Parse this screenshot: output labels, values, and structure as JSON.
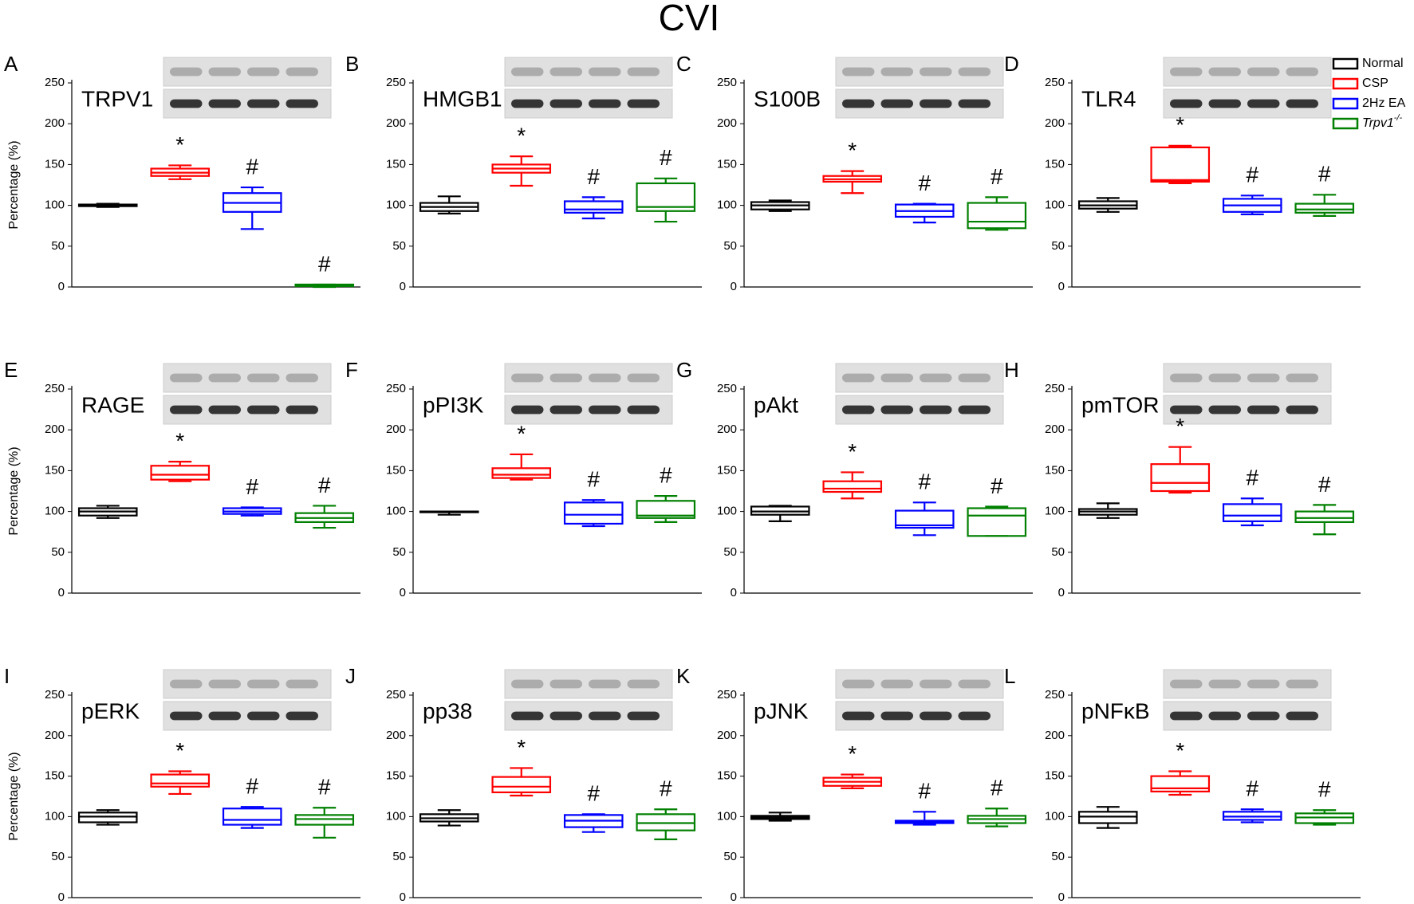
{
  "title": "CVI",
  "legend": [
    {
      "name": "Normal",
      "color": "#000000"
    },
    {
      "name": "CSP",
      "color": "#ff0000"
    },
    {
      "name": "2Hz EA",
      "color": "#0000ff"
    },
    {
      "name": "Trpv1",
      "sup": "-/-",
      "color": "#008000"
    }
  ],
  "chart_data": [
    {
      "type": "box",
      "label": "A",
      "title": "TRPV1",
      "ylabel": "Percentage (%)",
      "ylim": [
        0,
        250
      ],
      "yticks": [
        0,
        50,
        100,
        150,
        200,
        250
      ],
      "boxes": [
        [
          98,
          99,
          100,
          101,
          102
        ],
        [
          132,
          136,
          140,
          145,
          149
        ],
        [
          71,
          92,
          103,
          115,
          122
        ],
        [
          0,
          1,
          2,
          3,
          3
        ]
      ],
      "markers": [
        null,
        "*",
        "#",
        "#"
      ]
    },
    {
      "type": "box",
      "label": "B",
      "title": "HMGB1",
      "ylim": [
        0,
        250
      ],
      "yticks": [
        0,
        50,
        100,
        150,
        200,
        250
      ],
      "boxes": [
        [
          90,
          93,
          98,
          103,
          111
        ],
        [
          124,
          140,
          145,
          150,
          160
        ],
        [
          84,
          91,
          95,
          105,
          110
        ],
        [
          80,
          93,
          98,
          127,
          133
        ]
      ],
      "markers": [
        null,
        "*",
        "#",
        "#"
      ]
    },
    {
      "type": "box",
      "label": "C",
      "title": "S100B",
      "ylim": [
        0,
        250
      ],
      "yticks": [
        0,
        50,
        100,
        150,
        200,
        250
      ],
      "boxes": [
        [
          93,
          95,
          100,
          104,
          106
        ],
        [
          115,
          129,
          132,
          136,
          142
        ],
        [
          79,
          86,
          93,
          101,
          102
        ],
        [
          70,
          72,
          80,
          103,
          110
        ]
      ],
      "markers": [
        null,
        "*",
        "#",
        "#"
      ]
    },
    {
      "type": "box",
      "label": "D",
      "title": "TLR4",
      "ylim": [
        0,
        250
      ],
      "yticks": [
        0,
        50,
        100,
        150,
        200,
        250
      ],
      "boxes": [
        [
          92,
          96,
          100,
          105,
          109
        ],
        [
          127,
          129,
          131,
          171,
          173
        ],
        [
          89,
          92,
          100,
          108,
          112
        ],
        [
          87,
          91,
          95,
          102,
          113
        ]
      ],
      "markers": [
        null,
        "*",
        "#",
        "#"
      ]
    },
    {
      "type": "box",
      "label": "E",
      "title": "RAGE",
      "ylabel": "Percentage (%)",
      "ylim": [
        0,
        250
      ],
      "yticks": [
        0,
        50,
        100,
        150,
        200,
        250
      ],
      "boxes": [
        [
          92,
          95,
          100,
          104,
          107
        ],
        [
          137,
          139,
          145,
          156,
          161
        ],
        [
          95,
          97,
          100,
          104,
          105
        ],
        [
          80,
          87,
          92,
          98,
          107
        ]
      ],
      "markers": [
        null,
        "*",
        "#",
        "#"
      ]
    },
    {
      "type": "box",
      "label": "F",
      "title": "pPI3K",
      "ylim": [
        0,
        250
      ],
      "yticks": [
        0,
        50,
        100,
        150,
        200,
        250
      ],
      "boxes": [
        [
          96,
          100,
          100,
          100,
          100
        ],
        [
          139,
          141,
          145,
          153,
          170
        ],
        [
          82,
          85,
          96,
          111,
          114
        ],
        [
          87,
          92,
          95,
          113,
          119
        ]
      ],
      "markers": [
        null,
        "*",
        "#",
        "#"
      ]
    },
    {
      "type": "box",
      "label": "G",
      "title": "pAkt",
      "ylim": [
        0,
        250
      ],
      "yticks": [
        0,
        50,
        100,
        150,
        200,
        250
      ],
      "boxes": [
        [
          88,
          96,
          100,
          106,
          107
        ],
        [
          116,
          124,
          128,
          137,
          148
        ],
        [
          71,
          80,
          83,
          101,
          111
        ],
        [
          70,
          70,
          95,
          104,
          106
        ]
      ],
      "markers": [
        null,
        "*",
        "#",
        "#"
      ]
    },
    {
      "type": "box",
      "label": "H",
      "title": "pmTOR",
      "ylim": [
        0,
        250
      ],
      "yticks": [
        0,
        50,
        100,
        150,
        200,
        250
      ],
      "boxes": [
        [
          92,
          96,
          100,
          103,
          110
        ],
        [
          123,
          125,
          135,
          158,
          179
        ],
        [
          83,
          88,
          95,
          109,
          116
        ],
        [
          72,
          87,
          92,
          100,
          108
        ]
      ],
      "markers": [
        null,
        "*",
        "#",
        "#"
      ]
    },
    {
      "type": "box",
      "label": "I",
      "title": "pERK",
      "ylabel": "Percentage (%)",
      "ylim": [
        0,
        250
      ],
      "yticks": [
        0,
        50,
        100,
        150,
        200,
        250
      ],
      "boxes": [
        [
          90,
          93,
          100,
          105,
          108
        ],
        [
          128,
          137,
          141,
          152,
          156
        ],
        [
          86,
          90,
          96,
          110,
          112
        ],
        [
          74,
          90,
          97,
          102,
          111
        ]
      ],
      "markers": [
        null,
        "*",
        "#",
        "#"
      ]
    },
    {
      "type": "box",
      "label": "J",
      "title": "pp38",
      "ylim": [
        0,
        250
      ],
      "yticks": [
        0,
        50,
        100,
        150,
        200,
        250
      ],
      "boxes": [
        [
          89,
          94,
          98,
          103,
          108
        ],
        [
          126,
          130,
          137,
          149,
          160
        ],
        [
          81,
          87,
          95,
          102,
          103
        ],
        [
          72,
          83,
          92,
          103,
          109
        ]
      ],
      "markers": [
        null,
        "*",
        "#",
        "#"
      ]
    },
    {
      "type": "box",
      "label": "K",
      "title": "pJNK",
      "ylim": [
        0,
        250
      ],
      "yticks": [
        0,
        50,
        100,
        150,
        200,
        250
      ],
      "boxes": [
        [
          95,
          97,
          99,
          101,
          105
        ],
        [
          135,
          138,
          143,
          148,
          152
        ],
        [
          90,
          92,
          93,
          95,
          106
        ],
        [
          88,
          92,
          97,
          101,
          110
        ]
      ],
      "markers": [
        null,
        "*",
        "#",
        "#"
      ]
    },
    {
      "type": "box",
      "label": "L",
      "title": "pNFκB",
      "ylim": [
        0,
        250
      ],
      "yticks": [
        0,
        50,
        100,
        150,
        200,
        250
      ],
      "boxes": [
        [
          86,
          92,
          100,
          106,
          112
        ],
        [
          127,
          131,
          135,
          150,
          156
        ],
        [
          93,
          96,
          100,
          106,
          109
        ],
        [
          90,
          92,
          99,
          104,
          108
        ]
      ],
      "markers": [
        null,
        "*",
        "#",
        "#"
      ]
    }
  ]
}
